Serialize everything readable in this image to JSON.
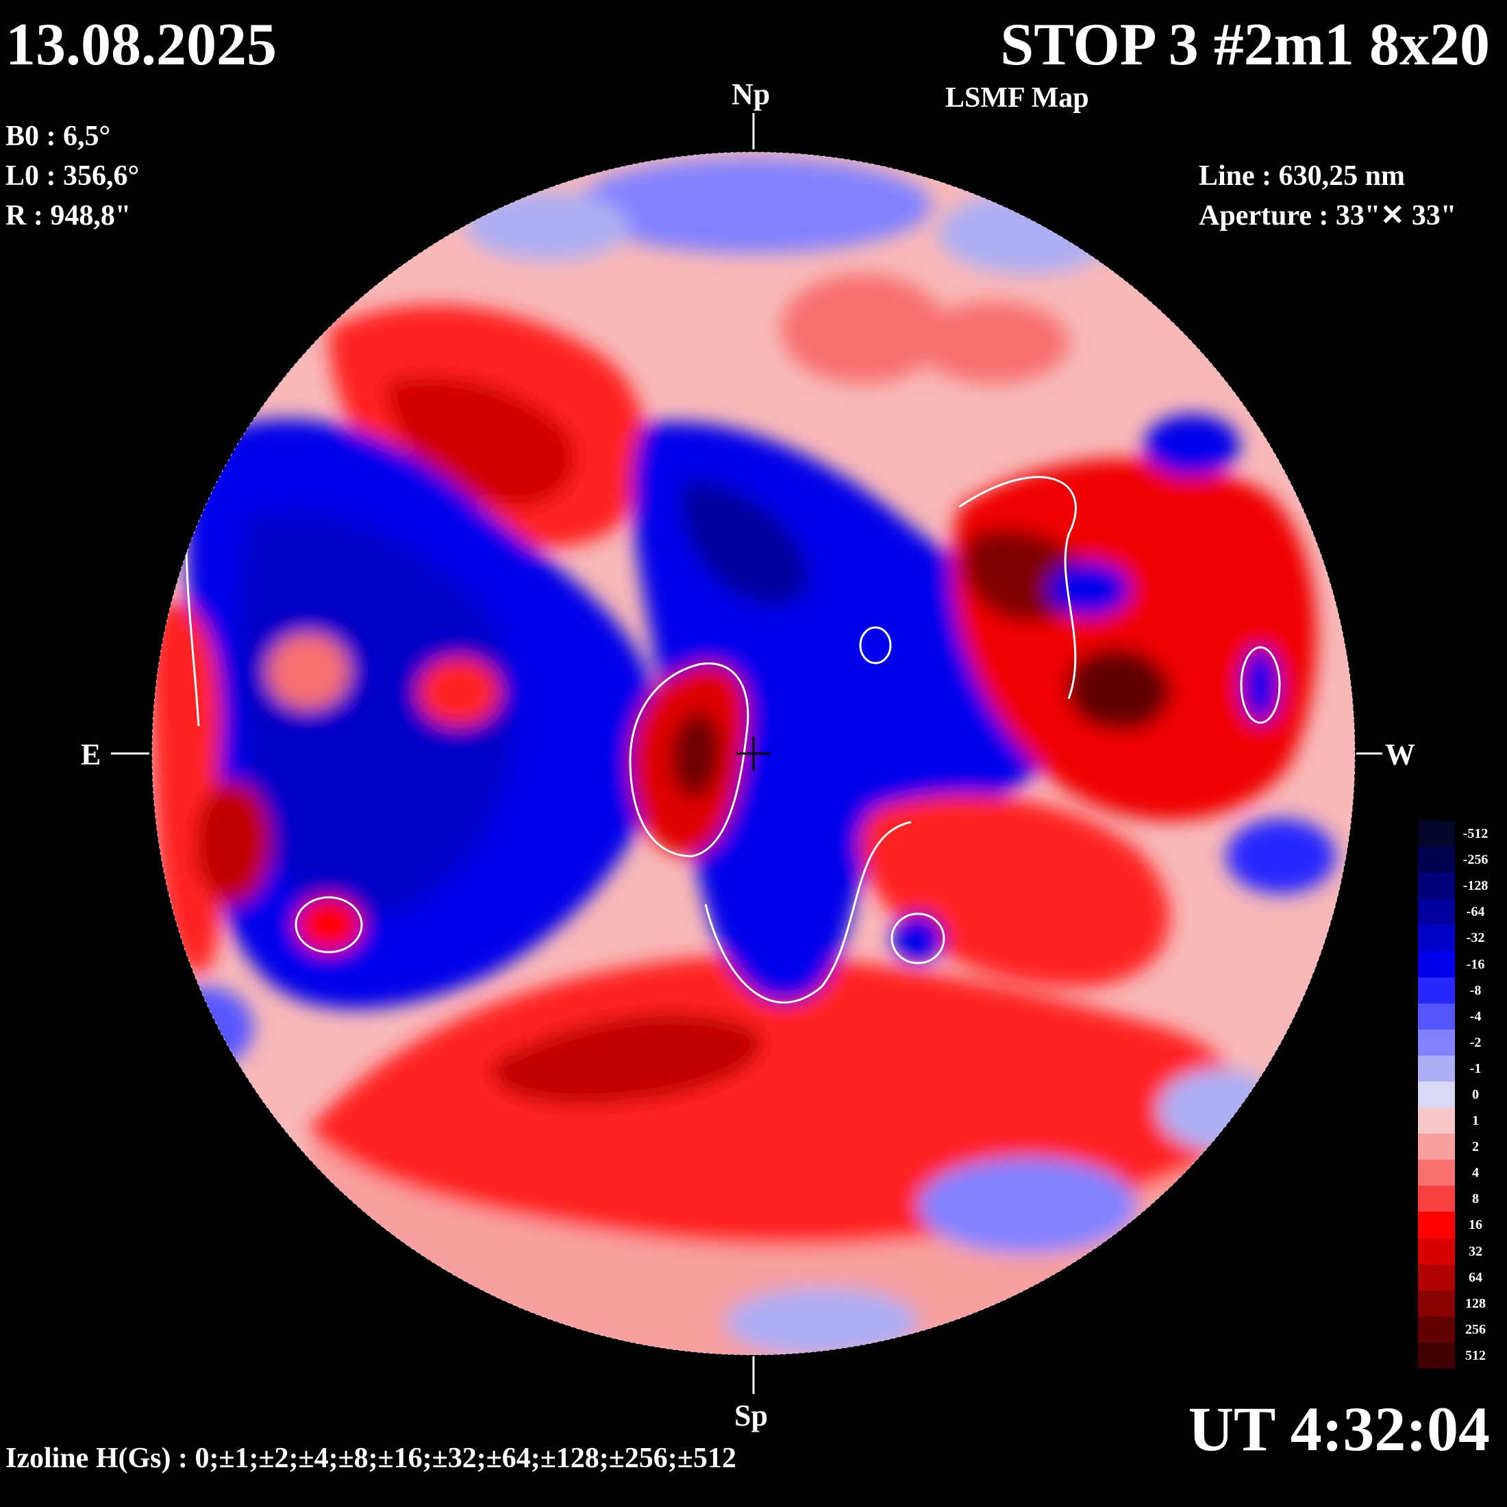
{
  "header": {
    "date": "13.08.2025",
    "title": "STOP 3 #2m1 8x20",
    "subtitle": "LSMF  Map"
  },
  "ephemeris": {
    "b0": "B0 : 6,5°",
    "l0": "L0 : 356,6°",
    "r": "R  : 948,8\""
  },
  "instrument": {
    "line": "Line :  630,25 nm",
    "aperture": "Aperture : 33\"✕ 33\""
  },
  "directions": {
    "north": "Np",
    "south": "Sp",
    "east": "E",
    "west": "W"
  },
  "time": "UT 4:32:04",
  "izoline": "Izoline H(Gs) : 0;±1;±2;±4;±8;±16;±32;±64;±128;±256;±512",
  "colorbar": {
    "labels": [
      "-512",
      "-256",
      "-128",
      "-64",
      "-32",
      "-16",
      "-8",
      "-4",
      "-2",
      "-1",
      "0",
      "1",
      "2",
      "4",
      "8",
      "16",
      "32",
      "64",
      "128",
      "256",
      "512"
    ],
    "colors": [
      "#05052a",
      "#000050",
      "#000078",
      "#00009e",
      "#0000c8",
      "#0000ea",
      "#2828ff",
      "#5656ff",
      "#8282ff",
      "#aeaef4",
      "#d8d8f4",
      "#f8c8c8",
      "#f8a0a0",
      "#f87070",
      "#f84040",
      "#ff0000",
      "#d80000",
      "#b00000",
      "#880000",
      "#600000",
      "#400000"
    ]
  },
  "map_palette": {
    "blue_deep": "#00009e",
    "blue_strong": "#0000ea",
    "blue_mid": "#5656ff",
    "blue_light": "#aeaef4",
    "red_light": "#f8c8c8",
    "red_mid": "#f87070",
    "red_strong": "#ff0000",
    "red_deep": "#880000",
    "izoline_zero": "#ffffff"
  }
}
